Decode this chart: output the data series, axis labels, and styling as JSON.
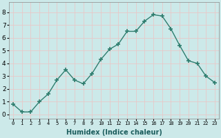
{
  "x": [
    0,
    1,
    2,
    3,
    4,
    5,
    6,
    7,
    8,
    9,
    10,
    11,
    12,
    13,
    14,
    15,
    16,
    17,
    18,
    19,
    20,
    21,
    22,
    23
  ],
  "y": [
    0.8,
    0.2,
    0.2,
    1.0,
    1.6,
    2.7,
    3.5,
    2.7,
    2.4,
    3.2,
    4.3,
    5.1,
    5.5,
    6.5,
    6.5,
    7.3,
    7.8,
    7.7,
    6.7,
    5.4,
    4.2,
    4.0,
    3.0,
    2.5
  ],
  "line_color": "#2e7d6e",
  "marker": "+",
  "marker_size": 4.0,
  "line_width": 1.0,
  "xlabel": "Humidex (Indice chaleur)",
  "xlabel_fontsize": 7,
  "xlabel_bold": true,
  "ylim": [
    -0.3,
    8.8
  ],
  "xlim": [
    -0.5,
    23.5
  ],
  "yticks": [
    0,
    1,
    2,
    3,
    4,
    5,
    6,
    7,
    8
  ],
  "xticks": [
    0,
    1,
    2,
    3,
    4,
    5,
    6,
    7,
    8,
    9,
    10,
    11,
    12,
    13,
    14,
    15,
    16,
    17,
    18,
    19,
    20,
    21,
    22,
    23
  ],
  "xtick_fontsize": 5,
  "ytick_fontsize": 6.5,
  "bg_color": "#cce9e9",
  "grid_color": "#e8c8c8",
  "grid_linewidth": 0.6,
  "marker_color": "#2e7d6e"
}
